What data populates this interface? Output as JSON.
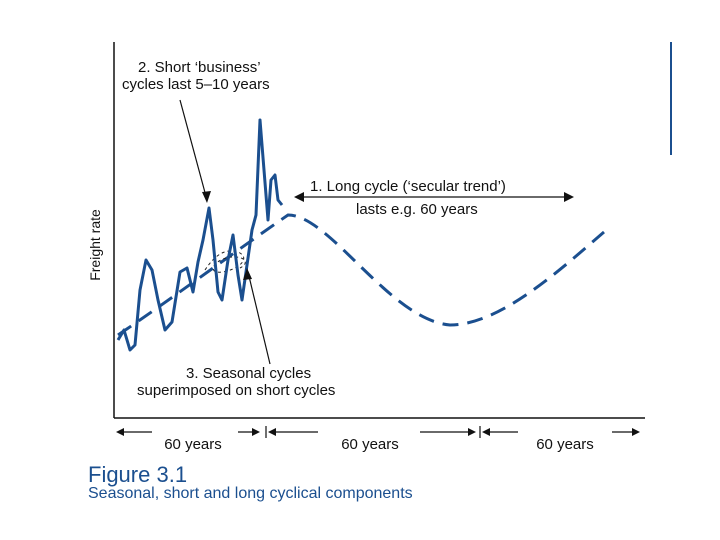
{
  "axis": {
    "ylabel": "Freight rate"
  },
  "annotations": {
    "short_cycles": {
      "line1": "2. Short ‘business’",
      "line2": "cycles last 5–10 years"
    },
    "long_cycle": {
      "line1": "1. Long cycle (‘secular trend’)",
      "line2": "lasts e.g. 60 years"
    },
    "seasonal": {
      "line1": "3. Seasonal cycles",
      "line2": "superimposed on short cycles"
    }
  },
  "periods": [
    "60 years",
    "60 years",
    "60 years"
  ],
  "caption": {
    "title": "Figure 3.1",
    "subtitle": "Seasonal, short and long cyclical components"
  },
  "colors": {
    "curve": "#1b4f8f",
    "axis": "#111111",
    "text": "#111111"
  }
}
